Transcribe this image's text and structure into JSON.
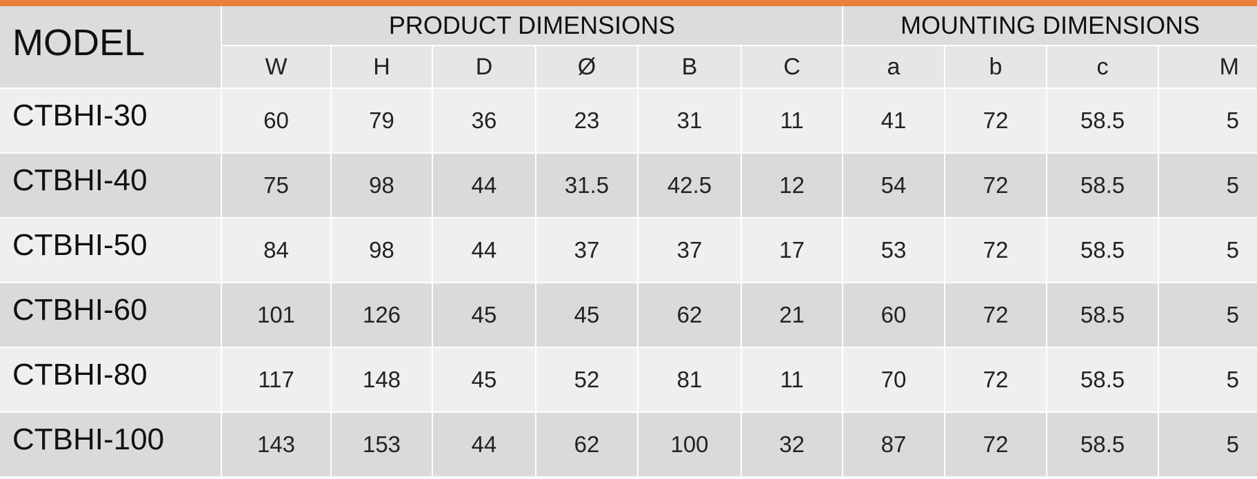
{
  "header": {
    "model": "MODEL",
    "groups": [
      "PRODUCT DIMENSIONS",
      "MOUNTING DIMENSIONS"
    ],
    "columns": [
      "W",
      "H",
      "D",
      "Ø",
      "B",
      "C",
      "a",
      "b",
      "c",
      "M"
    ]
  },
  "rows": [
    {
      "model": "CTBHI-30",
      "values": [
        60,
        79,
        36,
        23,
        31,
        11,
        41,
        72,
        58.5,
        5
      ]
    },
    {
      "model": "CTBHI-40",
      "values": [
        75,
        98,
        44,
        31.5,
        42.5,
        12,
        54,
        72,
        58.5,
        5
      ]
    },
    {
      "model": "CTBHI-50",
      "values": [
        84,
        98,
        44,
        37,
        37,
        17,
        53,
        72,
        58.5,
        5
      ]
    },
    {
      "model": "CTBHI-60",
      "values": [
        101,
        126,
        45,
        45,
        62,
        21,
        60,
        72,
        58.5,
        5
      ]
    },
    {
      "model": "CTBHI-80",
      "values": [
        117,
        148,
        45,
        52,
        81,
        11,
        70,
        72,
        58.5,
        5
      ]
    },
    {
      "model": "CTBHI-100",
      "values": [
        143,
        153,
        44,
        62,
        100,
        32,
        87,
        72,
        58.5,
        5
      ]
    }
  ]
}
